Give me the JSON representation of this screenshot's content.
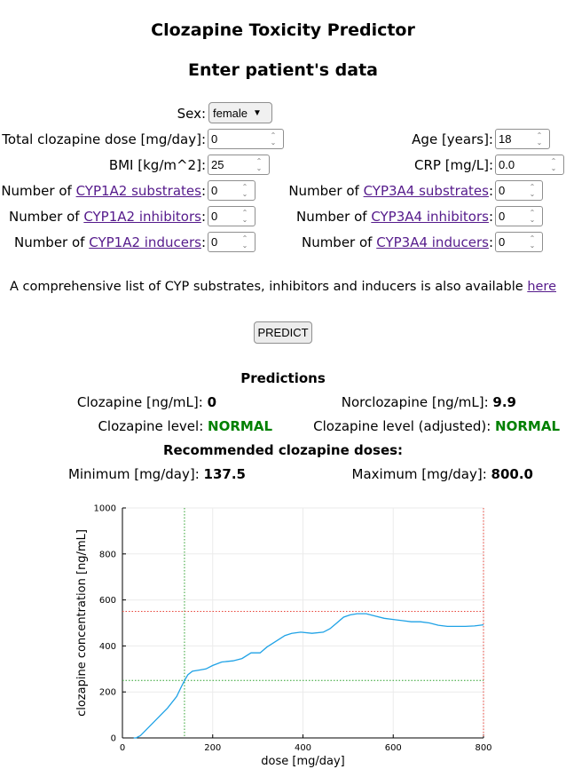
{
  "header": {
    "title": "Clozapine Toxicity Predictor",
    "subtitle": "Enter patient's data"
  },
  "form": {
    "sex": {
      "label": "Sex:",
      "value": "female"
    },
    "total_dose": {
      "label": "Total clozapine dose [mg/day]:",
      "value": "0"
    },
    "age": {
      "label": "Age [years]:",
      "value": "18"
    },
    "bmi": {
      "label": "BMI [kg/m^2]:",
      "value": "25"
    },
    "crp": {
      "label": "CRP [mg/L]:",
      "value": "0.0"
    },
    "cyp1a2_substrates": {
      "prefix": "Number of ",
      "link": "CYP1A2 substrates",
      "suffix": ":",
      "value": "0"
    },
    "cyp1a2_inhibitors": {
      "prefix": "Number of ",
      "link": "CYP1A2 inhibitors",
      "suffix": ":",
      "value": "0"
    },
    "cyp1a2_inducers": {
      "prefix": "Number of ",
      "link": "CYP1A2 inducers",
      "suffix": ":",
      "value": "0"
    },
    "cyp3a4_substrates": {
      "prefix": "Number of ",
      "link": "CYP3A4 substrates",
      "suffix": ":",
      "value": "0"
    },
    "cyp3a4_inhibitors": {
      "prefix": "Number of ",
      "link": "CYP3A4 inhibitors",
      "suffix": ":",
      "value": "0"
    },
    "cyp3a4_inducers": {
      "prefix": "Number of ",
      "link": "CYP3A4 inducers",
      "suffix": ":",
      "value": "0"
    }
  },
  "info": {
    "text": "A comprehensive list of CYP substrates, inhibitors and inducers is also available ",
    "link": "here"
  },
  "predict_button": "PREDICT",
  "predictions": {
    "heading": "Predictions",
    "clozapine_label": "Clozapine [ng/mL]:",
    "clozapine_value": "0",
    "norclozapine_label": "Norclozapine [ng/mL]:",
    "norclozapine_value": "9.9",
    "level_label": "Clozapine level:",
    "level_value": "NORMAL",
    "level_adj_label": "Clozapine level (adjusted):",
    "level_adj_value": "NORMAL",
    "status_color": "#008000"
  },
  "doses": {
    "heading": "Recommended clozapine doses:",
    "min_label": "Minimum [mg/day]:",
    "min_value": "137.5",
    "max_label": "Maximum [mg/day]:",
    "max_value": "800.0"
  },
  "chart_data": {
    "type": "line",
    "xlabel": "dose [mg/day]",
    "ylabel": "clozapine concentration [ng/mL]",
    "xlim": [
      0,
      800
    ],
    "ylim": [
      0,
      1000
    ],
    "xticks": [
      "0",
      "200",
      "400",
      "600",
      "800"
    ],
    "yticks": [
      "0",
      "200",
      "400",
      "600",
      "800",
      "1000"
    ],
    "grid": true,
    "series": [
      {
        "color": "#1fa2e6",
        "x": [
          25,
          30,
          40,
          60,
          80,
          100,
          120,
          130,
          137.5,
          145,
          155,
          170,
          185,
          200,
          220,
          245,
          265,
          285,
          305,
          320,
          340,
          360,
          375,
          395,
          420,
          445,
          460,
          475,
          490,
          505,
          520,
          540,
          560,
          580,
          600,
          620,
          640,
          660,
          680,
          700,
          720,
          740,
          760,
          780,
          800
        ],
        "y": [
          0,
          0,
          10,
          50,
          90,
          130,
          180,
          220,
          250,
          275,
          290,
          295,
          300,
          315,
          330,
          335,
          345,
          370,
          370,
          395,
          420,
          445,
          455,
          460,
          455,
          460,
          475,
          500,
          525,
          535,
          540,
          540,
          530,
          520,
          515,
          510,
          505,
          505,
          500,
          490,
          485,
          485,
          485,
          487,
          492
        ]
      }
    ],
    "reference_lines": {
      "vertical": [
        {
          "x": 137.5,
          "color": "#2ca02c"
        },
        {
          "x": 800,
          "color": "#e8443a"
        }
      ],
      "horizontal": [
        {
          "y": 250,
          "color": "#2ca02c"
        },
        {
          "y": 550,
          "color": "#e8443a"
        }
      ]
    }
  }
}
